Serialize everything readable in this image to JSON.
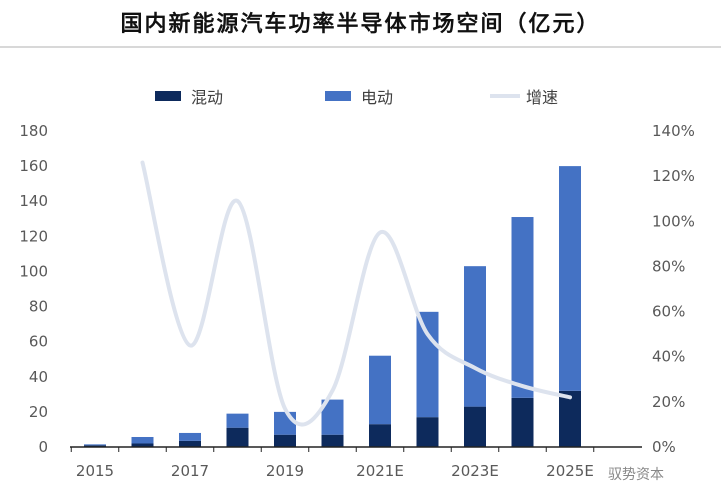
{
  "chart_data": {
    "type": "bar",
    "title": "国内新能源汽车功率半导体市场空间（亿元）",
    "categories": [
      "2015",
      "2016",
      "2017",
      "2018",
      "2019",
      "2020",
      "2021E",
      "2022E",
      "2023E",
      "2024E",
      "2025E"
    ],
    "x_tick_labels": [
      "2015",
      "2017",
      "2019",
      "2021E",
      "2023E",
      "2025E"
    ],
    "stacked": true,
    "series": [
      {
        "name": "混动",
        "type": "bar",
        "axis": "left",
        "color": "#0d2a5c",
        "values": [
          1,
          2,
          3.5,
          11,
          7,
          7,
          13,
          17,
          23,
          28,
          32
        ]
      },
      {
        "name": "电动",
        "type": "bar",
        "axis": "left",
        "color": "#4472c4",
        "values": [
          0.5,
          3.7,
          4.5,
          8,
          13,
          20,
          39,
          60,
          80,
          103,
          128
        ]
      },
      {
        "name": "增速",
        "type": "line",
        "axis": "right",
        "color": "#dde3ee",
        "values": [
          null,
          1.26,
          0.45,
          1.09,
          0.17,
          0.25,
          0.95,
          0.5,
          0.35,
          0.27,
          0.22
        ]
      }
    ],
    "ylim": [
      0,
      180
    ],
    "y_ticks": [
      "0",
      "20",
      "40",
      "60",
      "80",
      "100",
      "120",
      "140",
      "160",
      "180"
    ],
    "y2lim": [
      0,
      1.4
    ],
    "y2_ticks": [
      "0%",
      "20%",
      "40%",
      "60%",
      "80%",
      "100%",
      "120%",
      "140%"
    ],
    "legend_position": "top",
    "grid": false
  },
  "watermark": "驭势资本"
}
